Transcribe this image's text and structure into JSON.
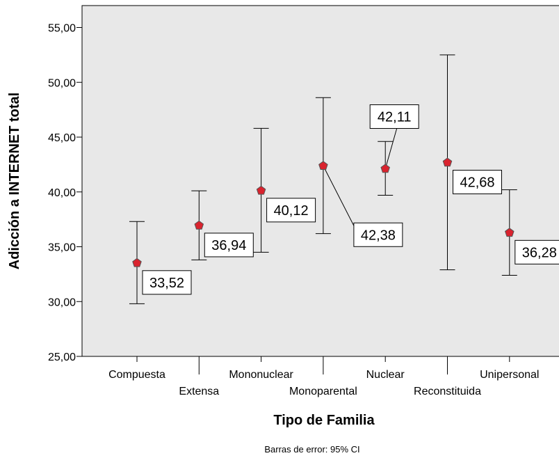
{
  "chart_data": {
    "type": "errorbar",
    "xlabel": "Tipo de Familia",
    "ylabel": "Adicción a INTERNET total",
    "footnote": "Barras de error: 95% CI",
    "categories": [
      "Compuesta",
      "Extensa",
      "Mononuclear",
      "Monoparental",
      "Nuclear",
      "Reconstituida",
      "Unipersonal"
    ],
    "means": [
      33.52,
      36.94,
      40.12,
      42.38,
      42.11,
      42.68,
      36.28
    ],
    "lower": [
      29.8,
      33.8,
      34.5,
      36.2,
      39.7,
      32.9,
      32.4
    ],
    "upper": [
      37.3,
      40.1,
      45.8,
      48.6,
      44.6,
      52.5,
      40.2
    ],
    "data_labels": [
      "33,52",
      "36,94",
      "40,12",
      "42,38",
      "42,11",
      "42,68",
      "36,28"
    ],
    "ylim": [
      25,
      57
    ],
    "yticks": [
      25,
      30,
      35,
      40,
      45,
      50,
      55
    ],
    "ytick_labels": [
      "25,00",
      "30,00",
      "35,00",
      "40,00",
      "45,00",
      "50,00",
      "55,00"
    ],
    "grid": false,
    "colors": {
      "plot_background": "#e8e8e8",
      "marker_fill": "#d9232e",
      "marker_stroke": "#555555",
      "line": "#000000"
    }
  }
}
